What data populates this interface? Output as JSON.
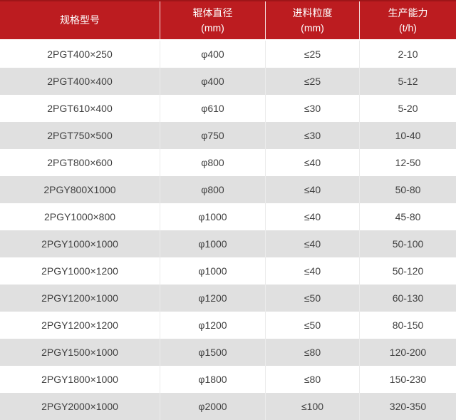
{
  "colors": {
    "header-bg": "#bc1c20",
    "header-top-border": "#9e1518",
    "header-text": "#ffffff",
    "row-bg": "#ffffff",
    "row-alt-bg": "#e0e0e0",
    "cell-border": "#ebebeb",
    "body-text": "#404040"
  },
  "table": {
    "columns": [
      {
        "label": "规格型号",
        "unit": ""
      },
      {
        "label": "辊体直径",
        "unit": "(mm)"
      },
      {
        "label": "进料粒度",
        "unit": "(mm)"
      },
      {
        "label": "生产能力",
        "unit": "(t/h)"
      }
    ],
    "rows": [
      [
        "2PGT400×250",
        "φ400",
        "≤25",
        "2-10"
      ],
      [
        "2PGT400×400",
        "φ400",
        "≤25",
        "5-12"
      ],
      [
        "2PGT610×400",
        "φ610",
        "≤30",
        "5-20"
      ],
      [
        "2PGT750×500",
        "φ750",
        "≤30",
        "10-40"
      ],
      [
        "2PGT800×600",
        "φ800",
        "≤40",
        "12-50"
      ],
      [
        "2PGY800X1000",
        "φ800",
        "≤40",
        "50-80"
      ],
      [
        "2PGY1000×800",
        "φ1000",
        "≤40",
        "45-80"
      ],
      [
        "2PGY1000×1000",
        "φ1000",
        "≤40",
        "50-100"
      ],
      [
        "2PGY1000×1200",
        "φ1000",
        "≤40",
        "50-120"
      ],
      [
        "2PGY1200×1000",
        "φ1200",
        "≤50",
        "60-130"
      ],
      [
        "2PGY1200×1200",
        "φ1200",
        "≤50",
        "80-150"
      ],
      [
        "2PGY1500×1000",
        "φ1500",
        "≤80",
        "120-200"
      ],
      [
        "2PGY1800×1000",
        "φ1800",
        "≤80",
        "150-230"
      ],
      [
        "2PGY2000×1000",
        "φ2000",
        "≤100",
        "320-350"
      ]
    ]
  }
}
